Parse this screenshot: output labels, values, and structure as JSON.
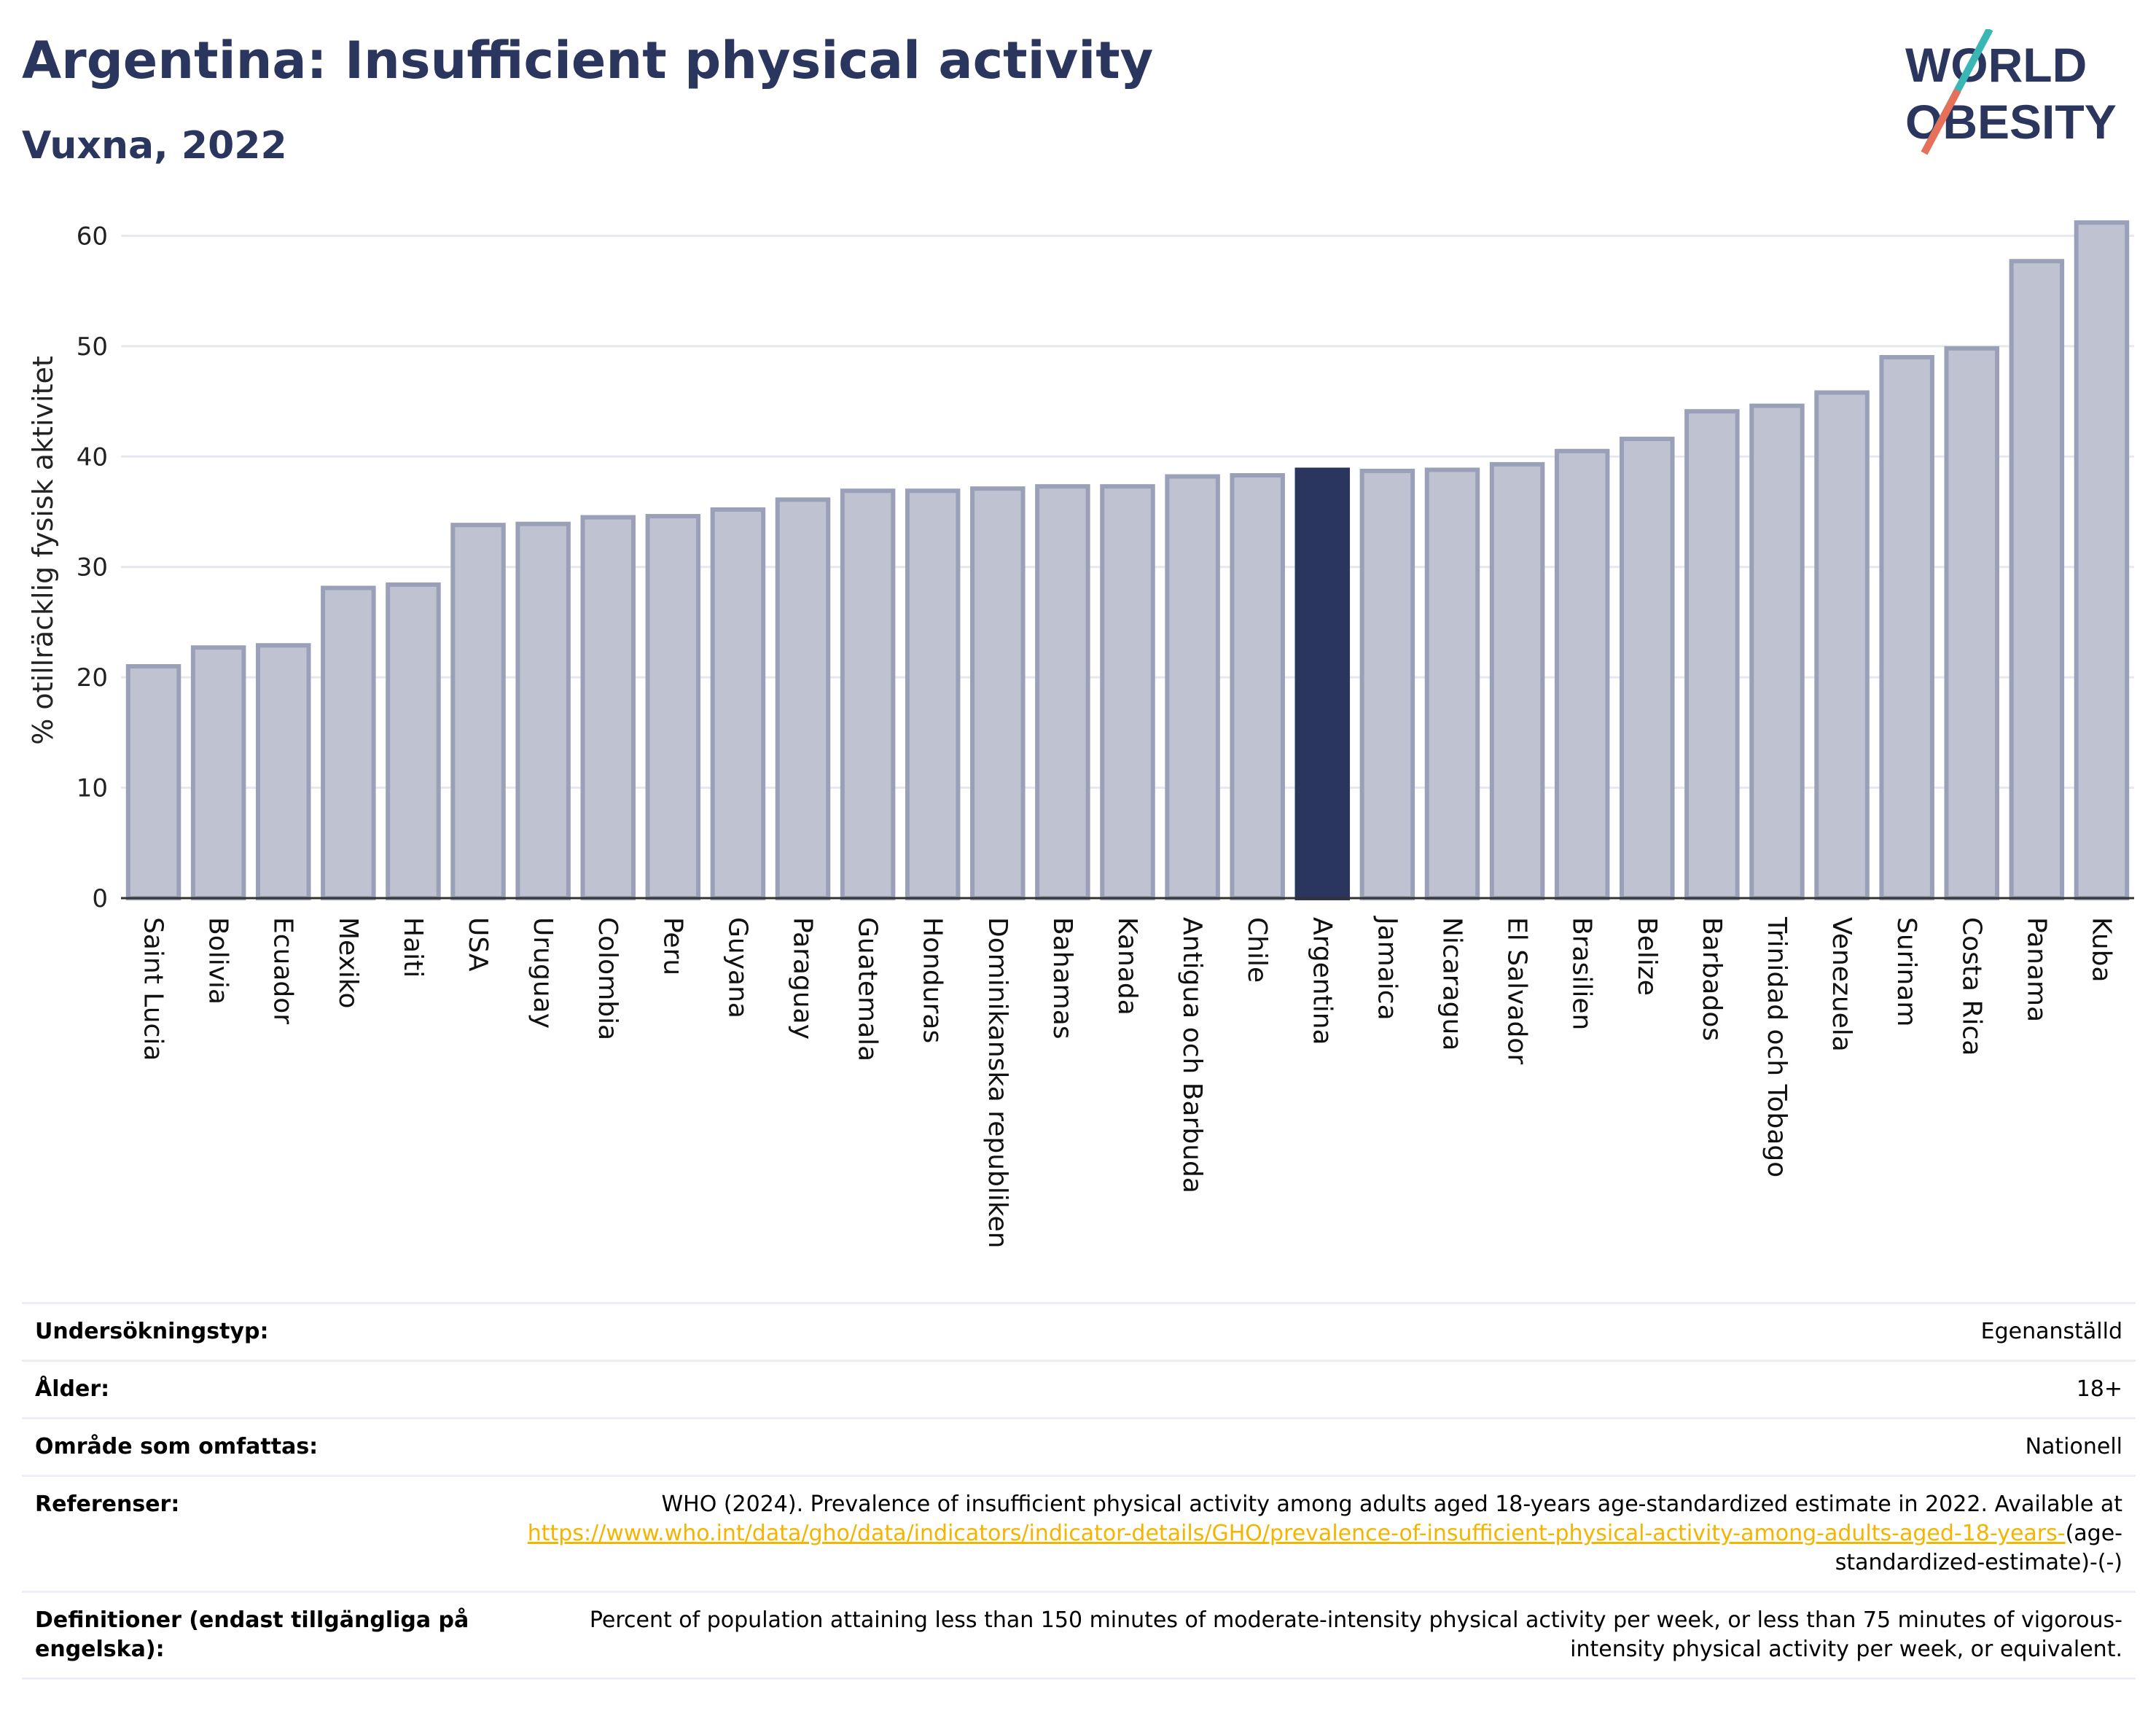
{
  "header": {
    "title": "Argentina: Insufficient physical activity",
    "subtitle": "Vuxna, 2022"
  },
  "logo": {
    "line1": "WORLD",
    "line2": "OBESITY"
  },
  "colors": {
    "title": "#2b365e",
    "bar": "#bfc3d1",
    "bar_border": "#9aa0b8",
    "highlight": "#2b365e",
    "link": "#f5b400"
  },
  "chart_data": {
    "type": "bar",
    "ylabel": "% otillräcklig fysisk aktivitet",
    "ylim": [
      0,
      63
    ],
    "yticks": [
      0,
      10,
      20,
      30,
      40,
      50,
      60
    ],
    "grid": true,
    "highlight": "Argentina",
    "categories": [
      "Saint Lucia",
      "Bolivia",
      "Ecuador",
      "Mexiko",
      "Haiti",
      "USA",
      "Uruguay",
      "Colombia",
      "Peru",
      "Guyana",
      "Paraguay",
      "Guatemala",
      "Honduras",
      "Dominikanska republiken",
      "Bahamas",
      "Kanada",
      "Antigua och Barbuda",
      "Chile",
      "Argentina",
      "Jamaica",
      "Nicaragua",
      "El Salvador",
      "Brasilien",
      "Belize",
      "Barbados",
      "Trinidad och Tobago",
      "Venezuela",
      "Surinam",
      "Costa Rica",
      "Panama",
      "Kuba"
    ],
    "values": [
      21.0,
      22.7,
      22.9,
      28.1,
      28.4,
      33.8,
      33.9,
      34.5,
      34.6,
      35.2,
      36.1,
      36.9,
      36.9,
      37.1,
      37.3,
      37.3,
      38.2,
      38.3,
      38.8,
      38.7,
      38.8,
      39.3,
      40.5,
      41.6,
      44.1,
      44.6,
      45.8,
      49.0,
      49.8,
      57.7,
      61.2
    ]
  },
  "meta": [
    {
      "label": "Undersökningstyp:",
      "value": "Egenanställd"
    },
    {
      "label": "Ålder:",
      "value": "18+"
    },
    {
      "label": "Område som omfattas:",
      "value": "Nationell"
    }
  ],
  "references": {
    "label": "Referenser:",
    "text": "WHO (2024). Prevalence of insufficient physical activity among adults aged 18-years age-standardized estimate in 2022. Available at",
    "link": "https://www.who.int/data/gho/data/indicators/indicator-details/GHO/prevalence-of-insufficient-physical-activity-among-adults-aged-18-years-",
    "suffix": "(age-standardized-estimate)-(-)"
  },
  "definitions": {
    "label": "Definitioner (endast tillgängliga på engelska):",
    "text": "Percent of population attaining less than 150 minutes of moderate-intensity physical activity per week, or less than 75 minutes of vigorous-intensity physical activity per week, or equivalent."
  }
}
